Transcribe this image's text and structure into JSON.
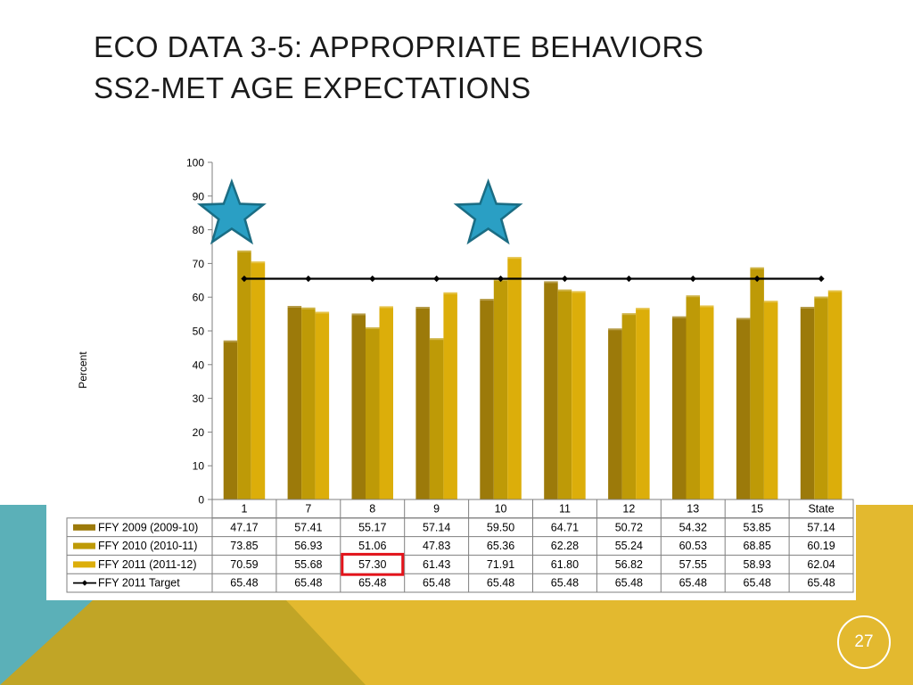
{
  "slide": {
    "title_line1": "ECO DATA 3-5: APPROPRIATE BEHAVIORS",
    "title_line2": "SS2-MET AGE EXPECTATIONS",
    "page_number": "27"
  },
  "colors": {
    "teal": "#5bb0b8",
    "gold": "#e3b92f",
    "olive": "#c1a526",
    "series_2009": "#9c7a0a",
    "series_2010": "#be9a07",
    "series_2011": "#dcae0a",
    "target_line": "#000000",
    "star_fill": "#2a9fc4",
    "star_stroke": "#1e6c82",
    "highlight": "#e3141b"
  },
  "icons": [
    "star-icon",
    "star-icon"
  ],
  "chart_data": {
    "type": "bar",
    "categories": [
      "1",
      "7",
      "8",
      "9",
      "10",
      "11",
      "12",
      "13",
      "15",
      "State"
    ],
    "series": [
      {
        "name": "FFY 2009 (2009-10)",
        "type": "bar",
        "values": [
          47.17,
          57.41,
          55.17,
          57.14,
          59.5,
          64.71,
          50.72,
          54.32,
          53.85,
          57.14
        ]
      },
      {
        "name": "FFY 2010 (2010-11)",
        "type": "bar",
        "values": [
          73.85,
          56.93,
          51.06,
          47.83,
          65.36,
          62.28,
          55.24,
          60.53,
          68.85,
          60.19
        ]
      },
      {
        "name": "FFY 2011 (2011-12)",
        "type": "bar",
        "values": [
          70.59,
          55.68,
          57.3,
          61.43,
          71.91,
          61.8,
          56.82,
          57.55,
          58.93,
          62.04
        ]
      },
      {
        "name": "FFY 2011 Target",
        "type": "line",
        "values": [
          65.48,
          65.48,
          65.48,
          65.48,
          65.48,
          65.48,
          65.48,
          65.48,
          65.48,
          65.48
        ]
      }
    ],
    "table_values": [
      [
        "47.17",
        "57.41",
        "55.17",
        "57.14",
        "59.50",
        "64.71",
        "50.72",
        "54.32",
        "53.85",
        "57.14"
      ],
      [
        "73.85",
        "56.93",
        "51.06",
        "47.83",
        "65.36",
        "62.28",
        "55.24",
        "60.53",
        "68.85",
        "60.19"
      ],
      [
        "70.59",
        "55.68",
        "57.30",
        "61.43",
        "71.91",
        "61.80",
        "56.82",
        "57.55",
        "58.93",
        "62.04"
      ],
      [
        "65.48",
        "65.48",
        "65.48",
        "65.48",
        "65.48",
        "65.48",
        "65.48",
        "65.48",
        "65.48",
        "65.48"
      ]
    ],
    "ylabel": "Percent",
    "ylim": [
      0,
      100
    ],
    "yticks": [
      "0",
      "10",
      "20",
      "30",
      "40",
      "50",
      "60",
      "70",
      "80",
      "90",
      "100"
    ],
    "legend_placement": "data table below chart",
    "starred_categories": [
      "1",
      "10"
    ],
    "highlighted_cell": {
      "series": "FFY 2011 (2011-12)",
      "category": "8",
      "value": "57.30"
    }
  }
}
